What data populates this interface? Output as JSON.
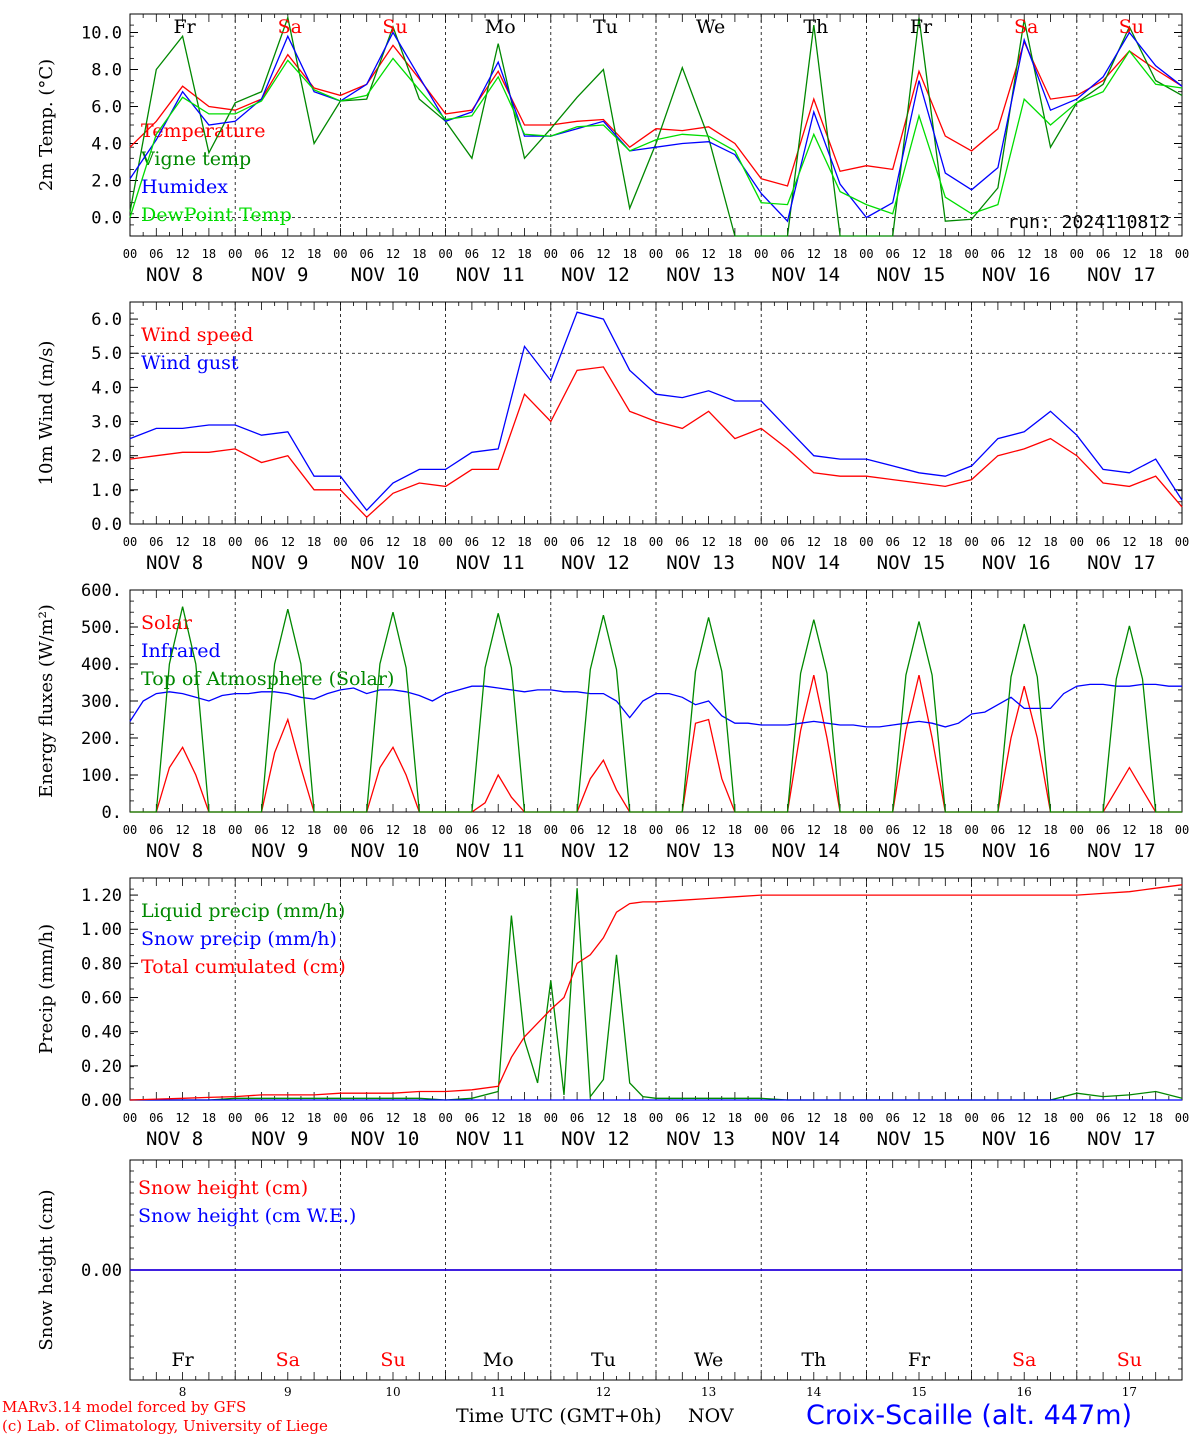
{
  "days": [
    "8",
    "9",
    "10",
    "11",
    "12",
    "13",
    "14",
    "15",
    "16",
    "17"
  ],
  "hour_labels": [
    "00",
    "06",
    "12",
    "18"
  ],
  "day_names": [
    {
      "label": "Fr",
      "color": "#000000"
    },
    {
      "label": "Sa",
      "color": "#ff0000"
    },
    {
      "label": "Su",
      "color": "#ff0000"
    },
    {
      "label": "Mo",
      "color": "#000000"
    },
    {
      "label": "Tu",
      "color": "#000000"
    },
    {
      "label": "We",
      "color": "#000000"
    },
    {
      "label": "Th",
      "color": "#000000"
    },
    {
      "label": "Fr",
      "color": "#000000"
    },
    {
      "label": "Sa",
      "color": "#ff0000"
    },
    {
      "label": "Su",
      "color": "#ff0000"
    }
  ],
  "month_label": "NOV",
  "credits": [
    "MARv3.14 model forced by GFS",
    "(c) Lab. of Climatology, University of Liege"
  ],
  "x_axis_title": "Time UTC (GMT+0h)",
  "x_axis_unit": "NOV",
  "station": "Croix-Scaille (alt. 447m)",
  "chart_data": [
    {
      "type": "line",
      "ylabel": "2m Temp. (°C)",
      "ylim": [
        -1.0,
        11.0
      ],
      "yticks": [
        "0.0",
        "2.0",
        "4.0",
        "6.0",
        "8.0",
        "10.0"
      ],
      "hline": 0.0,
      "annotation": "run: 2024110812",
      "x_hours": [
        0,
        6,
        12,
        18,
        24,
        30,
        36,
        42,
        48,
        54,
        60,
        66,
        72,
        78,
        84,
        90,
        96,
        102,
        108,
        114,
        120,
        126,
        132,
        138,
        144,
        150,
        156,
        162,
        168,
        174,
        180,
        186,
        192,
        198,
        204,
        210,
        216,
        222,
        228,
        234,
        240
      ],
      "series": [
        {
          "name": "Temperature",
          "color": "#ff0000",
          "values": [
            3.8,
            5.2,
            7.1,
            6.0,
            5.8,
            6.4,
            8.8,
            7.0,
            6.6,
            7.2,
            9.3,
            7.5,
            5.6,
            5.8,
            7.9,
            5.0,
            5.0,
            5.2,
            5.3,
            3.8,
            4.8,
            4.7,
            4.9,
            4.0,
            2.1,
            1.7,
            6.4,
            2.5,
            2.8,
            2.6,
            7.9,
            4.4,
            3.6,
            4.8,
            9.5,
            6.4,
            6.6,
            7.4,
            9.0,
            8.0,
            7.1
          ]
        },
        {
          "name": "Vigne temp",
          "color": "#008800",
          "values": [
            0.3,
            8.0,
            9.8,
            3.5,
            6.2,
            6.8,
            10.8,
            4.0,
            6.3,
            6.4,
            10.3,
            6.4,
            5.2,
            3.2,
            9.4,
            3.2,
            4.8,
            6.5,
            8.0,
            0.5,
            4.0,
            8.1,
            4.3,
            -1.0,
            -1.0,
            -1.0,
            10.4,
            -1.0,
            -1.0,
            -1.0,
            10.8,
            -0.2,
            -0.1,
            1.6,
            10.7,
            3.8,
            6.2,
            7.2,
            10.3,
            7.4,
            6.6
          ]
        },
        {
          "name": "Humidex",
          "color": "#0000ff",
          "values": [
            2.1,
            4.2,
            6.8,
            5.0,
            5.2,
            6.4,
            9.8,
            6.8,
            6.3,
            7.2,
            10.0,
            7.6,
            5.2,
            5.7,
            8.4,
            4.4,
            4.4,
            4.8,
            5.2,
            3.6,
            3.8,
            4.0,
            4.1,
            3.4,
            1.3,
            -0.2,
            5.7,
            1.8,
            0.0,
            0.8,
            7.4,
            2.4,
            1.5,
            2.7,
            9.6,
            5.8,
            6.4,
            7.6,
            10.0,
            8.2,
            7.1
          ]
        },
        {
          "name": "DewPoint Temp",
          "color": "#00dd00",
          "values": [
            0.0,
            4.5,
            6.5,
            5.6,
            5.6,
            6.3,
            8.5,
            6.9,
            6.3,
            6.6,
            8.6,
            6.9,
            5.3,
            5.5,
            7.6,
            4.5,
            4.4,
            4.9,
            5.0,
            3.6,
            4.2,
            4.5,
            4.4,
            3.6,
            0.8,
            0.7,
            4.5,
            1.4,
            0.7,
            0.2,
            5.5,
            1.1,
            0.2,
            0.7,
            6.4,
            5.0,
            6.2,
            6.8,
            9.0,
            7.2,
            7.0
          ]
        }
      ]
    },
    {
      "type": "line",
      "ylabel": "10m Wind (m/s)",
      "ylim": [
        0.0,
        6.5
      ],
      "yticks": [
        "0.0",
        "1.0",
        "2.0",
        "3.0",
        "4.0",
        "5.0",
        "6.0"
      ],
      "hline": 5.0,
      "x_hours": [
        0,
        6,
        12,
        18,
        24,
        30,
        36,
        42,
        48,
        54,
        60,
        66,
        72,
        78,
        84,
        90,
        96,
        102,
        108,
        114,
        120,
        126,
        132,
        138,
        144,
        150,
        156,
        162,
        168,
        174,
        180,
        186,
        192,
        198,
        204,
        210,
        216,
        222,
        228,
        234,
        240
      ],
      "series": [
        {
          "name": "Wind speed",
          "color": "#ff0000",
          "values": [
            1.9,
            2.0,
            2.1,
            2.1,
            2.2,
            1.8,
            2.0,
            1.0,
            1.0,
            0.2,
            0.9,
            1.2,
            1.1,
            1.6,
            1.6,
            3.8,
            3.0,
            4.5,
            4.6,
            3.3,
            3.0,
            2.8,
            3.3,
            2.5,
            2.8,
            2.2,
            1.5,
            1.4,
            1.4,
            1.3,
            1.2,
            1.1,
            1.3,
            2.0,
            2.2,
            2.5,
            2.0,
            1.2,
            1.1,
            1.4,
            0.5
          ]
        },
        {
          "name": "Wind gust",
          "color": "#0000ff",
          "values": [
            2.5,
            2.8,
            2.8,
            2.9,
            2.9,
            2.6,
            2.7,
            1.4,
            1.4,
            0.4,
            1.2,
            1.6,
            1.6,
            2.1,
            2.2,
            5.2,
            4.2,
            6.2,
            6.0,
            4.5,
            3.8,
            3.7,
            3.9,
            3.6,
            3.6,
            2.8,
            2.0,
            1.9,
            1.9,
            1.7,
            1.5,
            1.4,
            1.7,
            2.5,
            2.7,
            3.3,
            2.6,
            1.6,
            1.5,
            1.9,
            0.7
          ]
        }
      ]
    },
    {
      "type": "line",
      "ylabel": "Energy fluxes (W/m²)",
      "ylim": [
        0,
        600
      ],
      "yticks": [
        "0.",
        "100.",
        "200.",
        "300.",
        "400.",
        "500.",
        "600."
      ],
      "x_hours": [
        0,
        3,
        6,
        9,
        12,
        15,
        18,
        21,
        24,
        27,
        30,
        33,
        36,
        39,
        42,
        45,
        48,
        51,
        54,
        57,
        60,
        63,
        66,
        69,
        72,
        75,
        78,
        81,
        84,
        87,
        90,
        93,
        96,
        99,
        102,
        105,
        108,
        111,
        114,
        117,
        120,
        123,
        126,
        129,
        132,
        135,
        138,
        141,
        144,
        147,
        150,
        153,
        156,
        159,
        162,
        165,
        168,
        171,
        174,
        177,
        180,
        183,
        186,
        189,
        192,
        195,
        198,
        201,
        204,
        207,
        210,
        213,
        216,
        219,
        222,
        225,
        228,
        231,
        234,
        237,
        240
      ],
      "series": [
        {
          "name": "Solar",
          "color": "#ff0000",
          "values": [
            0,
            0,
            0,
            120,
            175,
            100,
            0,
            0,
            0,
            0,
            0,
            160,
            250,
            120,
            0,
            0,
            0,
            0,
            0,
            120,
            175,
            100,
            0,
            0,
            0,
            0,
            0,
            25,
            100,
            40,
            0,
            0,
            0,
            0,
            0,
            90,
            140,
            60,
            0,
            0,
            0,
            0,
            0,
            240,
            250,
            90,
            0,
            0,
            0,
            0,
            0,
            220,
            370,
            200,
            0,
            0,
            0,
            0,
            0,
            220,
            370,
            200,
            0,
            0,
            0,
            0,
            0,
            200,
            340,
            200,
            0,
            0,
            0,
            0,
            0,
            60,
            120,
            60,
            0,
            0,
            0
          ]
        },
        {
          "name": "Infrared",
          "color": "#0000ff",
          "values": [
            245,
            300,
            320,
            325,
            320,
            310,
            300,
            315,
            320,
            320,
            325,
            325,
            320,
            310,
            305,
            320,
            330,
            335,
            320,
            330,
            330,
            325,
            315,
            300,
            320,
            330,
            340,
            340,
            335,
            330,
            325,
            330,
            330,
            325,
            325,
            320,
            320,
            300,
            255,
            300,
            320,
            320,
            310,
            290,
            300,
            260,
            240,
            240,
            235,
            235,
            235,
            240,
            245,
            240,
            235,
            235,
            230,
            230,
            235,
            240,
            245,
            240,
            230,
            240,
            265,
            270,
            290,
            310,
            280,
            280,
            280,
            320,
            340,
            345,
            345,
            340,
            340,
            345,
            345,
            340,
            340
          ]
        },
        {
          "name": "Top of Atmosphere (Solar)",
          "color": "#008800",
          "values": [
            0,
            0,
            0,
            400,
            555,
            400,
            0,
            0,
            0,
            0,
            0,
            400,
            548,
            400,
            0,
            0,
            0,
            0,
            0,
            400,
            540,
            390,
            0,
            0,
            0,
            0,
            0,
            390,
            537,
            390,
            0,
            0,
            0,
            0,
            0,
            385,
            532,
            385,
            0,
            0,
            0,
            0,
            0,
            380,
            526,
            380,
            0,
            0,
            0,
            0,
            0,
            375,
            520,
            375,
            0,
            0,
            0,
            0,
            0,
            370,
            515,
            370,
            0,
            0,
            0,
            0,
            0,
            365,
            508,
            365,
            0,
            0,
            0,
            0,
            0,
            360,
            503,
            360,
            0,
            0,
            0
          ]
        }
      ]
    },
    {
      "type": "line",
      "ylabel": "Precip (mm/h)",
      "ylim": [
        0,
        1.3
      ],
      "yticks": [
        "0.00",
        "0.20",
        "0.40",
        "0.60",
        "0.80",
        "1.00",
        "1.20"
      ],
      "x_hours": [
        0,
        6,
        12,
        18,
        24,
        30,
        36,
        42,
        48,
        54,
        60,
        66,
        72,
        78,
        84,
        87,
        90,
        93,
        96,
        99,
        102,
        105,
        108,
        111,
        114,
        117,
        120,
        126,
        132,
        138,
        144,
        150,
        156,
        162,
        168,
        174,
        180,
        186,
        192,
        198,
        204,
        210,
        216,
        222,
        228,
        234,
        240
      ],
      "series": [
        {
          "name": "Liquid precip (mm/h)",
          "color": "#008800",
          "values": [
            0,
            0,
            0,
            0,
            0.01,
            0.01,
            0.01,
            0.01,
            0.01,
            0.01,
            0.01,
            0.01,
            0,
            0.01,
            0.05,
            1.08,
            0.35,
            0.1,
            0.7,
            0.03,
            1.24,
            0.02,
            0.12,
            0.85,
            0.1,
            0.02,
            0.01,
            0.01,
            0.01,
            0.01,
            0.01,
            0,
            0,
            0,
            0,
            0,
            0,
            0,
            0,
            0,
            0,
            0,
            0.04,
            0.02,
            0.03,
            0.05,
            0.01
          ]
        },
        {
          "name": "Snow precip (mm/h)",
          "color": "#0000ff",
          "values": [
            0,
            0,
            0,
            0,
            0,
            0,
            0,
            0,
            0,
            0,
            0,
            0,
            0,
            0,
            0,
            0,
            0,
            0,
            0,
            0,
            0,
            0,
            0,
            0,
            0,
            0,
            0,
            0,
            0,
            0,
            0,
            0,
            0,
            0,
            0,
            0,
            0,
            0,
            0,
            0,
            0,
            0,
            0,
            0,
            0,
            0,
            0
          ]
        },
        {
          "name": "Total cumulated (cm)",
          "color": "#ff0000",
          "values": [
            0,
            0.005,
            0.01,
            0.015,
            0.02,
            0.03,
            0.03,
            0.03,
            0.04,
            0.04,
            0.04,
            0.05,
            0.05,
            0.06,
            0.08,
            0.25,
            0.37,
            0.45,
            0.53,
            0.6,
            0.8,
            0.85,
            0.95,
            1.1,
            1.15,
            1.16,
            1.16,
            1.17,
            1.18,
            1.19,
            1.2,
            1.2,
            1.2,
            1.2,
            1.2,
            1.2,
            1.2,
            1.2,
            1.2,
            1.2,
            1.2,
            1.2,
            1.2,
            1.21,
            1.22,
            1.24,
            1.26
          ]
        }
      ]
    },
    {
      "type": "line",
      "ylabel": "Snow height (cm)",
      "ylim": [
        -1,
        1
      ],
      "yticks": [
        "0.00"
      ],
      "x_hours": [
        0,
        240
      ],
      "series": [
        {
          "name": "Snow height (cm)",
          "color": "#ff0000",
          "values": [
            0,
            0
          ]
        },
        {
          "name": "Snow height (cm W.E.)",
          "color": "#0000ff",
          "values": [
            0,
            0
          ]
        }
      ]
    }
  ]
}
